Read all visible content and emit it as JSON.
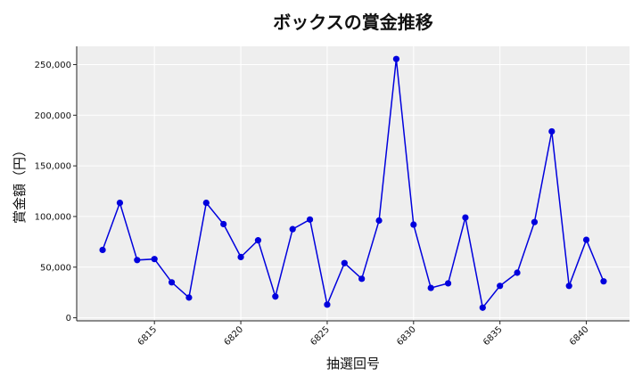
{
  "chart_data": {
    "type": "line",
    "title": "ボックスの賞金推移",
    "xlabel": "抽選回号",
    "ylabel": "賞金額（円）",
    "x": [
      6812,
      6813,
      6814,
      6815,
      6816,
      6817,
      6818,
      6819,
      6820,
      6821,
      6822,
      6823,
      6824,
      6825,
      6826,
      6827,
      6828,
      6829,
      6830,
      6831,
      6832,
      6833,
      6834,
      6835,
      6836,
      6837,
      6838,
      6839,
      6840,
      6841
    ],
    "series": [
      {
        "values": [
          67000,
          113500,
          57000,
          58000,
          35000,
          20000,
          113500,
          92500,
          60000,
          76500,
          21000,
          87500,
          97000,
          13000,
          54000,
          38500,
          96000,
          255500,
          92000,
          29500,
          34000,
          99000,
          10000,
          31500,
          44500,
          94500,
          184000,
          31500,
          77000,
          36000
        ],
        "color": "#0000dd"
      }
    ],
    "xlim": [
      6810.5,
      6842.5
    ],
    "ylim": [
      -3000,
      268000
    ],
    "x_ticks": [
      6815,
      6820,
      6825,
      6830,
      6835,
      6840
    ],
    "x_tick_labels": [
      "6815",
      "6820",
      "6825",
      "6830",
      "6835",
      "6840"
    ],
    "y_ticks": [
      0,
      50000,
      100000,
      150000,
      200000,
      250000
    ],
    "y_tick_labels": [
      "0",
      "50,000",
      "100,000",
      "150,000",
      "200,000",
      "250,000"
    ],
    "grid": true,
    "legend": "none",
    "plot_background": "#eeeeee"
  }
}
